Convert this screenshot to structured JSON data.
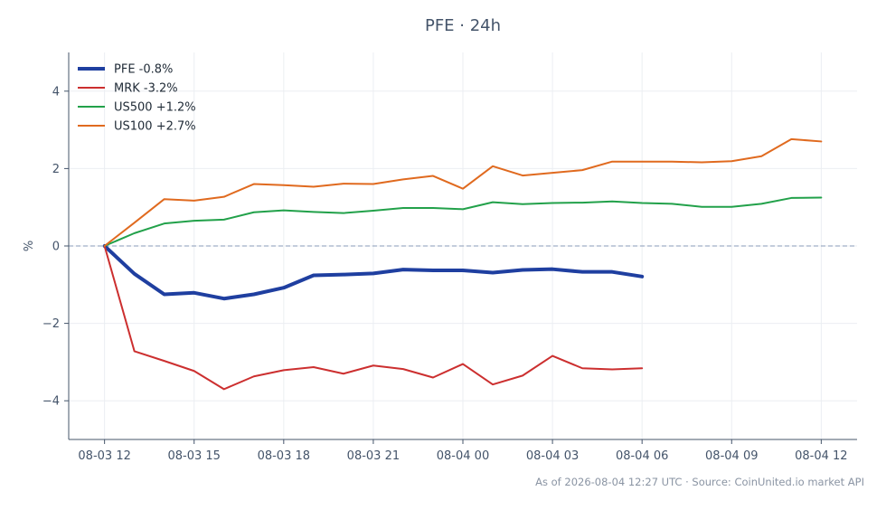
{
  "chart_data": {
    "type": "line",
    "title": "PFE · 24h",
    "xlabel": "",
    "ylabel": "%",
    "x_tick_labels": [
      "08-03 12",
      "08-03 15",
      "08-03 18",
      "08-03 21",
      "08-04 00",
      "08-04 03",
      "08-04 06",
      "08-04 09",
      "08-04 12"
    ],
    "y_ticks": [
      -4,
      -2,
      0,
      2,
      4
    ],
    "y_tick_labels": [
      "−4",
      "−2",
      "0",
      "2",
      "4"
    ],
    "xlim": [
      -1.2,
      25.2
    ],
    "ylim": [
      -5,
      5
    ],
    "grid": true,
    "legend_position": "top-left",
    "reference_line": 0,
    "x_hours": [
      0,
      1,
      2,
      3,
      4,
      5,
      6,
      7,
      8,
      9,
      10,
      11,
      12,
      13,
      14,
      15,
      16,
      17,
      18,
      19,
      20,
      21,
      22,
      23,
      24
    ],
    "series": [
      {
        "name": "PFE -0.8%",
        "color": "#1f3fa0",
        "width": 4,
        "values": [
          0,
          -0.72,
          -1.25,
          -1.21,
          -1.36,
          -1.25,
          -1.08,
          -0.76,
          -0.74,
          -0.71,
          -0.61,
          -0.63,
          -0.63,
          -0.69,
          -0.62,
          -0.6,
          -0.67,
          -0.67,
          -0.79
        ]
      },
      {
        "name": "MRK -3.2%",
        "color": "#cc2f2f",
        "width": 2,
        "values": [
          0,
          -2.72,
          -2.97,
          -3.23,
          -3.7,
          -3.37,
          -3.21,
          -3.13,
          -3.3,
          -3.09,
          -3.18,
          -3.4,
          -3.05,
          -3.58,
          -3.35,
          -2.84,
          -3.16,
          -3.19,
          -3.16
        ]
      },
      {
        "name": "US500 +1.2%",
        "color": "#22a14a",
        "width": 2,
        "values": [
          0,
          0.33,
          0.58,
          0.65,
          0.68,
          0.87,
          0.92,
          0.88,
          0.85,
          0.91,
          0.98,
          0.98,
          0.95,
          1.13,
          1.08,
          1.11,
          1.12,
          1.15,
          1.11,
          1.09,
          1.01,
          1.01,
          1.09,
          1.24,
          1.25
        ]
      },
      {
        "name": "US100 +2.7%",
        "color": "#e06a1f",
        "width": 2,
        "values": [
          0,
          0.6,
          1.21,
          1.17,
          1.27,
          1.6,
          1.57,
          1.53,
          1.61,
          1.6,
          1.72,
          1.81,
          1.48,
          2.06,
          1.82,
          1.89,
          1.96,
          2.18,
          2.18,
          2.18,
          2.16,
          2.19,
          2.32,
          2.76,
          2.7
        ]
      }
    ]
  },
  "footer": "As of 2026-08-04 12:27 UTC · Source: CoinUnited.io market API"
}
